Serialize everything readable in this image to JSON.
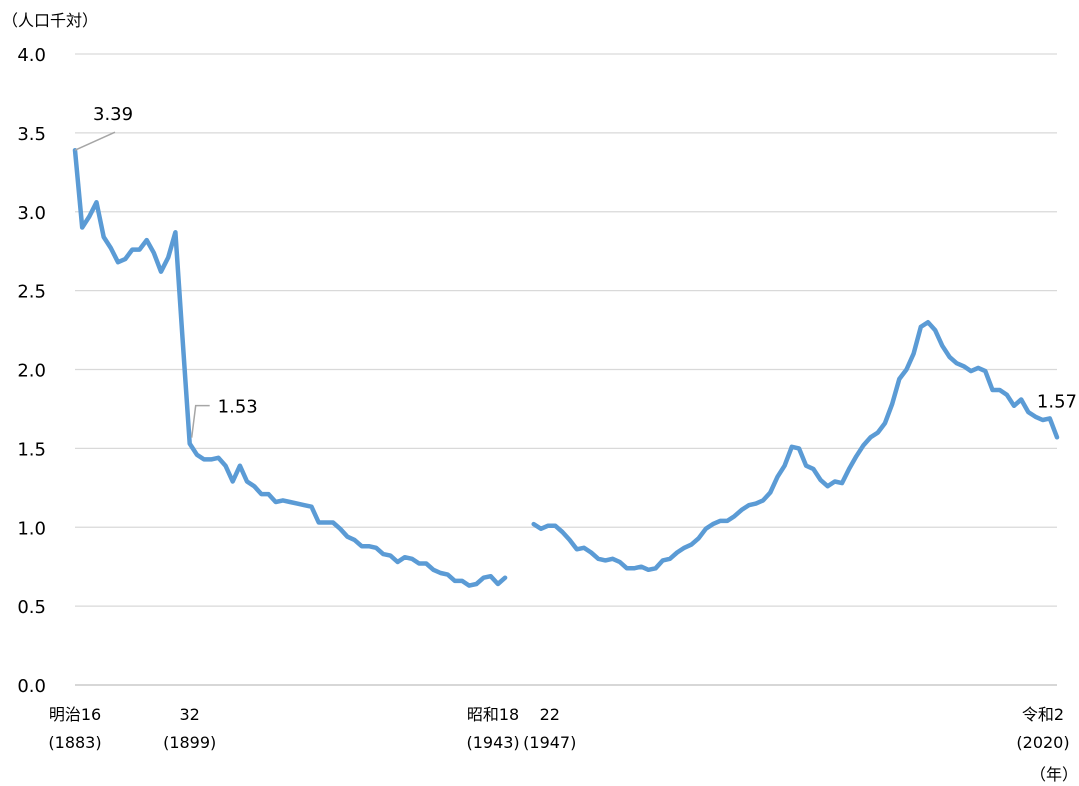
{
  "chart_data": {
    "type": "line",
    "y_unit_label": "（人口千対）",
    "x_unit_label": "（年）",
    "ylim": [
      0,
      4
    ],
    "xlim": [
      1883,
      2020
    ],
    "y_ticks": [
      "0.0",
      "0.5",
      "1.0",
      "1.5",
      "2.0",
      "2.5",
      "3.0",
      "3.5",
      "4.0"
    ],
    "grid": true,
    "x_tick_labels": [
      {
        "year": 1883,
        "lines": [
          "明治16",
          "(1883)"
        ]
      },
      {
        "year": 1899,
        "lines": [
          "32",
          "(1899)"
        ]
      },
      {
        "year": 1943,
        "lines": [
          "昭和18",
          "(1943)"
        ]
      },
      {
        "year": 1947,
        "lines": [
          "22",
          "(1947)"
        ]
      },
      {
        "year": 2020,
        "lines": [
          "令和2",
          "(2020)"
        ]
      }
    ],
    "line_color": "#5b9bd5",
    "series": [
      {
        "segments": [
          {
            "x": [
              1883,
              1884,
              1885,
              1886,
              1887,
              1888,
              1889,
              1890,
              1891,
              1892,
              1893,
              1894,
              1895,
              1896,
              1897,
              1898,
              1899,
              1900,
              1901,
              1902,
              1903,
              1904,
              1905,
              1906,
              1907,
              1908,
              1909,
              1910,
              1911,
              1912,
              1913,
              1914,
              1915,
              1916,
              1917,
              1918,
              1919,
              1920,
              1921,
              1922,
              1923,
              1924,
              1925,
              1926,
              1927,
              1928,
              1929,
              1930,
              1931,
              1932,
              1933,
              1934,
              1935,
              1936,
              1937,
              1938,
              1939,
              1940,
              1941,
              1942,
              1943
            ],
            "y": [
              3.39,
              2.9,
              2.97,
              3.06,
              2.84,
              2.77,
              2.68,
              2.7,
              2.76,
              2.76,
              2.82,
              2.74,
              2.62,
              2.71,
              2.87,
              2.2,
              1.53,
              1.46,
              1.43,
              1.43,
              1.44,
              1.39,
              1.29,
              1.39,
              1.29,
              1.26,
              1.21,
              1.21,
              1.16,
              1.17,
              1.16,
              1.15,
              1.14,
              1.13,
              1.03,
              1.03,
              1.03,
              0.99,
              0.94,
              0.92,
              0.88,
              0.88,
              0.87,
              0.83,
              0.82,
              0.78,
              0.81,
              0.8,
              0.77,
              0.77,
              0.73,
              0.71,
              0.7,
              0.66,
              0.66,
              0.63,
              0.64,
              0.68,
              0.69,
              0.64,
              0.68
            ]
          },
          {
            "x": [
              1947,
              1948,
              1949,
              1950,
              1951,
              1952,
              1953,
              1954,
              1955,
              1956,
              1957,
              1958,
              1959,
              1960,
              1961,
              1962,
              1963,
              1964,
              1965,
              1966,
              1967,
              1968,
              1969,
              1970,
              1971,
              1972,
              1973,
              1974,
              1975,
              1976,
              1977,
              1978,
              1979,
              1980,
              1981,
              1982,
              1983,
              1984,
              1985,
              1986,
              1987,
              1988,
              1989,
              1990,
              1991,
              1992,
              1993,
              1994,
              1995,
              1996,
              1997,
              1998,
              1999,
              2000,
              2001,
              2002,
              2003,
              2004,
              2005,
              2006,
              2007,
              2008,
              2009,
              2010,
              2011,
              2012,
              2013,
              2014,
              2015,
              2016,
              2017,
              2018,
              2019,
              2020
            ],
            "y": [
              1.02,
              0.99,
              1.01,
              1.01,
              0.97,
              0.92,
              0.86,
              0.87,
              0.84,
              0.8,
              0.79,
              0.8,
              0.78,
              0.74,
              0.74,
              0.75,
              0.73,
              0.74,
              0.79,
              0.8,
              0.84,
              0.87,
              0.89,
              0.93,
              0.99,
              1.02,
              1.04,
              1.04,
              1.07,
              1.11,
              1.14,
              1.15,
              1.17,
              1.22,
              1.32,
              1.39,
              1.51,
              1.5,
              1.39,
              1.37,
              1.3,
              1.26,
              1.29,
              1.28,
              1.37,
              1.45,
              1.52,
              1.57,
              1.6,
              1.66,
              1.78,
              1.94,
              2.0,
              2.1,
              2.27,
              2.3,
              2.25,
              2.15,
              2.08,
              2.04,
              2.02,
              1.99,
              2.01,
              1.99,
              1.87,
              1.87,
              1.84,
              1.77,
              1.81,
              1.73,
              1.7,
              1.68,
              1.69,
              1.57
            ]
          }
        ]
      }
    ],
    "annotations": [
      {
        "year": 1883,
        "value": 3.39,
        "text": "3.39"
      },
      {
        "year": 1899,
        "value": 1.53,
        "text": "1.53"
      },
      {
        "year": 2020,
        "value": 1.57,
        "text": "1.57"
      }
    ]
  }
}
